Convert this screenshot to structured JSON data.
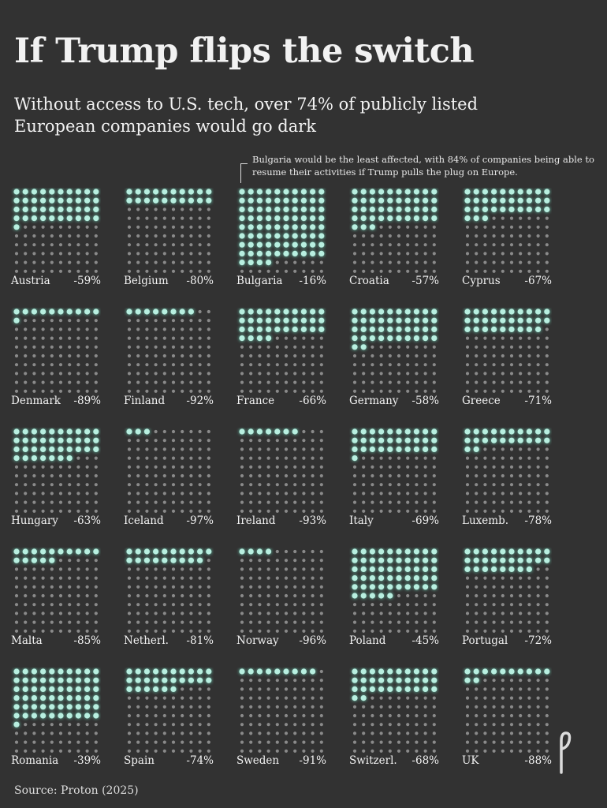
{
  "title": "If Trump flips the switch",
  "subtitle": "Without access to U.S. tech, over 74% of publicly listed European companies would go dark",
  "annotation": "Bulgaria would be the least affected, with 84% of companies being able to resume their activities if Trump pulls the plug on Europe.",
  "source": "Source: Proton (2025)",
  "colors": {
    "background": "#323232",
    "active_dot": "#b8efe0",
    "inactive_dot": "#8a8a8a"
  },
  "chart_data": {
    "type": "waffle",
    "grid": "10x10, one dot per 1% of companies; lit dots = companies able to continue",
    "countries": [
      {
        "name": "Austria",
        "label": "-59%",
        "value": -59
      },
      {
        "name": "Belgium",
        "label": "-80%",
        "value": -80
      },
      {
        "name": "Bulgaria",
        "label": "-16%",
        "value": -16
      },
      {
        "name": "Croatia",
        "label": "-57%",
        "value": -57
      },
      {
        "name": "Cyprus",
        "label": "-67%",
        "value": -67
      },
      {
        "name": "Denmark",
        "label": "-89%",
        "value": -89
      },
      {
        "name": "Finland",
        "label": "-92%",
        "value": -92
      },
      {
        "name": "France",
        "label": "-66%",
        "value": -66
      },
      {
        "name": "Germany",
        "label": "-58%",
        "value": -58
      },
      {
        "name": "Greece",
        "label": "-71%",
        "value": -71
      },
      {
        "name": "Hungary",
        "label": "-63%",
        "value": -63
      },
      {
        "name": "Iceland",
        "label": "-97%",
        "value": -97
      },
      {
        "name": "Ireland",
        "label": "-93%",
        "value": -93
      },
      {
        "name": "Italy",
        "label": "-69%",
        "value": -69
      },
      {
        "name": "Luxemb.",
        "label": "-78%",
        "value": -78
      },
      {
        "name": "Malta",
        "label": "-85%",
        "value": -85
      },
      {
        "name": "Netherl.",
        "label": "-81%",
        "value": -81
      },
      {
        "name": "Norway",
        "label": "-96%",
        "value": -96
      },
      {
        "name": "Poland",
        "label": "-45%",
        "value": -45
      },
      {
        "name": "Portugal",
        "label": "-72%",
        "value": -72
      },
      {
        "name": "Romania",
        "label": "-39%",
        "value": -39
      },
      {
        "name": "Spain",
        "label": "-74%",
        "value": -74
      },
      {
        "name": "Sweden",
        "label": "-91%",
        "value": -91
      },
      {
        "name": "Switzerl.",
        "label": "-68%",
        "value": -68
      },
      {
        "name": "UK",
        "label": "-88%",
        "value": -88
      }
    ]
  }
}
